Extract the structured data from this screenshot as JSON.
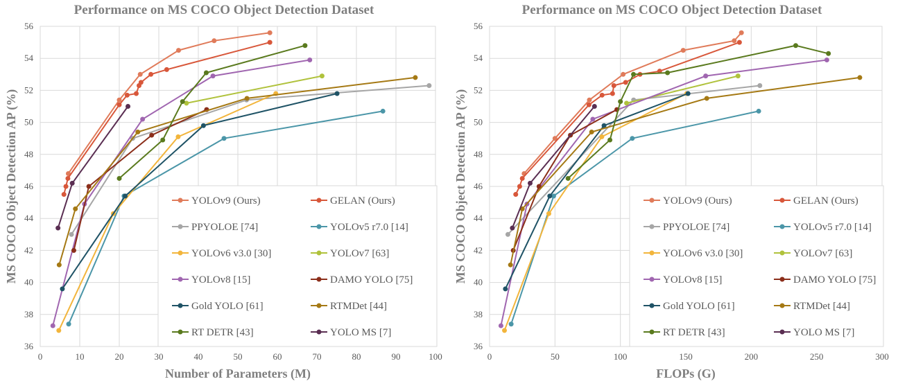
{
  "chart_data": [
    {
      "type": "line",
      "title": "Performance on MS COCO Object Detection Dataset",
      "xlabel": "Number of Parameters (M)",
      "ylabel": "MS COCO Object Detection AP (%)",
      "xlim": [
        0,
        100
      ],
      "ylim": [
        36,
        56
      ],
      "xticks": [
        0,
        10,
        20,
        30,
        40,
        50,
        60,
        70,
        80,
        90,
        100
      ],
      "yticks": [
        36,
        38,
        40,
        42,
        44,
        46,
        48,
        50,
        52,
        54,
        56
      ],
      "grid": true,
      "legend_position": "bottom-right",
      "series": [
        {
          "name": "YOLOv9 (Ours)",
          "color": "#e07b5a",
          "points": [
            [
              7.1,
              46.8
            ],
            [
              20.0,
              51.4
            ],
            [
              25.3,
              53.0
            ],
            [
              35.0,
              54.5
            ],
            [
              44.0,
              55.1
            ],
            [
              58.1,
              55.6
            ]
          ]
        },
        {
          "name": "GELAN (Ours)",
          "color": "#d8573a",
          "points": [
            [
              6.0,
              45.5
            ],
            [
              6.5,
              46.0
            ],
            [
              7.0,
              46.5
            ],
            [
              20.0,
              51.1
            ],
            [
              22.0,
              51.7
            ],
            [
              24.3,
              51.8
            ],
            [
              25.0,
              52.3
            ],
            [
              25.5,
              52.5
            ],
            [
              28.0,
              53.0
            ],
            [
              32.0,
              53.3
            ],
            [
              58.1,
              55.0
            ]
          ]
        },
        {
          "name": "PPYOLOE [74]",
          "color": "#a6a6a6",
          "points": [
            [
              7.9,
              43.0
            ],
            [
              23.4,
              49.0
            ],
            [
              52.2,
              51.4
            ],
            [
              98.4,
              52.3
            ]
          ]
        },
        {
          "name": "YOLOv5 r7.0 [14]",
          "color": "#4b96a8",
          "points": [
            [
              7.2,
              37.4
            ],
            [
              21.2,
              45.4
            ],
            [
              46.5,
              49.0
            ],
            [
              86.7,
              50.7
            ]
          ]
        },
        {
          "name": "YOLOv6 v3.0 [30]",
          "color": "#f2b53c",
          "points": [
            [
              4.7,
              37.0
            ],
            [
              18.5,
              44.3
            ],
            [
              34.9,
              49.1
            ],
            [
              59.6,
              51.8
            ]
          ]
        },
        {
          "name": "YOLOv7 [63]",
          "color": "#b0c23c",
          "points": [
            [
              37.0,
              51.2
            ],
            [
              71.3,
              52.9
            ]
          ]
        },
        {
          "name": "YOLOv8 [15]",
          "color": "#a066b0",
          "points": [
            [
              3.2,
              37.3
            ],
            [
              11.2,
              44.9
            ],
            [
              25.9,
              50.2
            ],
            [
              43.7,
              52.9
            ],
            [
              68.2,
              53.9
            ]
          ]
        },
        {
          "name": "DAMO YOLO [75]",
          "color": "#8b2e1a",
          "points": [
            [
              8.5,
              42.0
            ],
            [
              12.3,
              46.0
            ],
            [
              28.2,
              49.2
            ],
            [
              42.1,
              50.8
            ]
          ]
        },
        {
          "name": "Gold YOLO [61]",
          "color": "#1f5366",
          "points": [
            [
              5.6,
              39.6
            ],
            [
              21.5,
              45.4
            ],
            [
              41.3,
              49.8
            ],
            [
              75.1,
              51.8
            ]
          ]
        },
        {
          "name": "RTMDet [44]",
          "color": "#a57914",
          "points": [
            [
              4.8,
              41.1
            ],
            [
              8.9,
              44.6
            ],
            [
              24.7,
              49.4
            ],
            [
              52.3,
              51.5
            ],
            [
              94.9,
              52.8
            ]
          ]
        },
        {
          "name": "RT DETR [43]",
          "color": "#5a7a1e",
          "points": [
            [
              20.0,
              46.5
            ],
            [
              31.0,
              48.9
            ],
            [
              36.0,
              51.3
            ],
            [
              42.0,
              53.1
            ],
            [
              67.0,
              54.8
            ]
          ]
        },
        {
          "name": "YOLO MS [7]",
          "color": "#5a2e52",
          "points": [
            [
              4.5,
              43.4
            ],
            [
              8.1,
              46.2
            ],
            [
              22.2,
              51.0
            ]
          ]
        }
      ]
    },
    {
      "type": "line",
      "title": "Performance on MS COCO Object Detection Dataset",
      "xlabel": "FLOPs (G)",
      "ylabel": "MS COCO Object Detection AP (%)",
      "xlim": [
        0,
        300
      ],
      "ylim": [
        36,
        56
      ],
      "xticks": [
        0,
        50,
        100,
        150,
        200,
        250,
        300
      ],
      "yticks": [
        36,
        38,
        40,
        42,
        44,
        46,
        48,
        50,
        52,
        54,
        56
      ],
      "grid": true,
      "legend_position": "bottom-right",
      "series": [
        {
          "name": "YOLOv9 (Ours)",
          "color": "#e07b5a",
          "points": [
            [
              26.4,
              46.8
            ],
            [
              50.0,
              49.0
            ],
            [
              76.3,
              51.4
            ],
            [
              102.1,
              53.0
            ],
            [
              148.0,
              54.5
            ],
            [
              187.0,
              55.1
            ],
            [
              192.5,
              55.6
            ]
          ]
        },
        {
          "name": "GELAN (Ours)",
          "color": "#d8573a",
          "points": [
            [
              20.0,
              45.5
            ],
            [
              23.0,
              46.0
            ],
            [
              25.0,
              46.5
            ],
            [
              76.0,
              51.1
            ],
            [
              86.0,
              51.7
            ],
            [
              94.0,
              51.8
            ],
            [
              95.0,
              52.3
            ],
            [
              104.0,
              52.5
            ],
            [
              115.0,
              53.0
            ],
            [
              130.0,
              53.2
            ],
            [
              191.0,
              55.0
            ]
          ]
        },
        {
          "name": "PPYOLOE [74]",
          "color": "#a6a6a6",
          "points": [
            [
              14.0,
              43.0
            ],
            [
              110.1,
              51.4
            ],
            [
              206.6,
              52.3
            ]
          ]
        },
        {
          "name": "YOLOv5 r7.0 [14]",
          "color": "#4b96a8",
          "points": [
            [
              16.5,
              37.4
            ],
            [
              49.0,
              45.4
            ],
            [
              109.1,
              49.0
            ],
            [
              205.7,
              50.7
            ]
          ]
        },
        {
          "name": "YOLOv6 v3.0 [30]",
          "color": "#f2b53c",
          "points": [
            [
              11.4,
              37.0
            ],
            [
              45.3,
              44.3
            ],
            [
              85.8,
              49.1
            ],
            [
              150.7,
              51.8
            ]
          ]
        },
        {
          "name": "YOLOv7 [63]",
          "color": "#b0c23c",
          "points": [
            [
              104.7,
              51.2
            ],
            [
              189.9,
              52.9
            ]
          ]
        },
        {
          "name": "YOLOv8 [15]",
          "color": "#a066b0",
          "points": [
            [
              8.7,
              37.3
            ],
            [
              28.6,
              44.9
            ],
            [
              78.9,
              50.2
            ],
            [
              165.2,
              52.9
            ],
            [
              257.8,
              53.9
            ]
          ]
        },
        {
          "name": "DAMO YOLO [75]",
          "color": "#8b2e1a",
          "points": [
            [
              18.1,
              42.0
            ],
            [
              37.8,
              46.0
            ],
            [
              61.8,
              49.2
            ],
            [
              97.3,
              50.8
            ]
          ]
        },
        {
          "name": "Gold YOLO [61]",
          "color": "#1f5366",
          "points": [
            [
              12.1,
              39.6
            ],
            [
              46.0,
              45.4
            ],
            [
              87.5,
              49.8
            ],
            [
              151.7,
              51.8
            ]
          ]
        },
        {
          "name": "RTMDet [44]",
          "color": "#a57914",
          "points": [
            [
              16.0,
              41.1
            ],
            [
              25.0,
              44.6
            ],
            [
              78.0,
              49.4
            ],
            [
              166.0,
              51.5
            ],
            [
              283.0,
              52.8
            ]
          ]
        },
        {
          "name": "RT DETR [43]",
          "color": "#5a7a1e",
          "points": [
            [
              60.0,
              46.5
            ],
            [
              92.0,
              48.9
            ],
            [
              100.0,
              51.3
            ],
            [
              110.0,
              53.0
            ],
            [
              136.0,
              53.1
            ],
            [
              234.0,
              54.8
            ],
            [
              259.0,
              54.3
            ]
          ]
        },
        {
          "name": "YOLO MS [7]",
          "color": "#5a2e52",
          "points": [
            [
              17.4,
              43.4
            ],
            [
              31.0,
              46.2
            ],
            [
              80.2,
              51.0
            ]
          ]
        }
      ]
    }
  ]
}
